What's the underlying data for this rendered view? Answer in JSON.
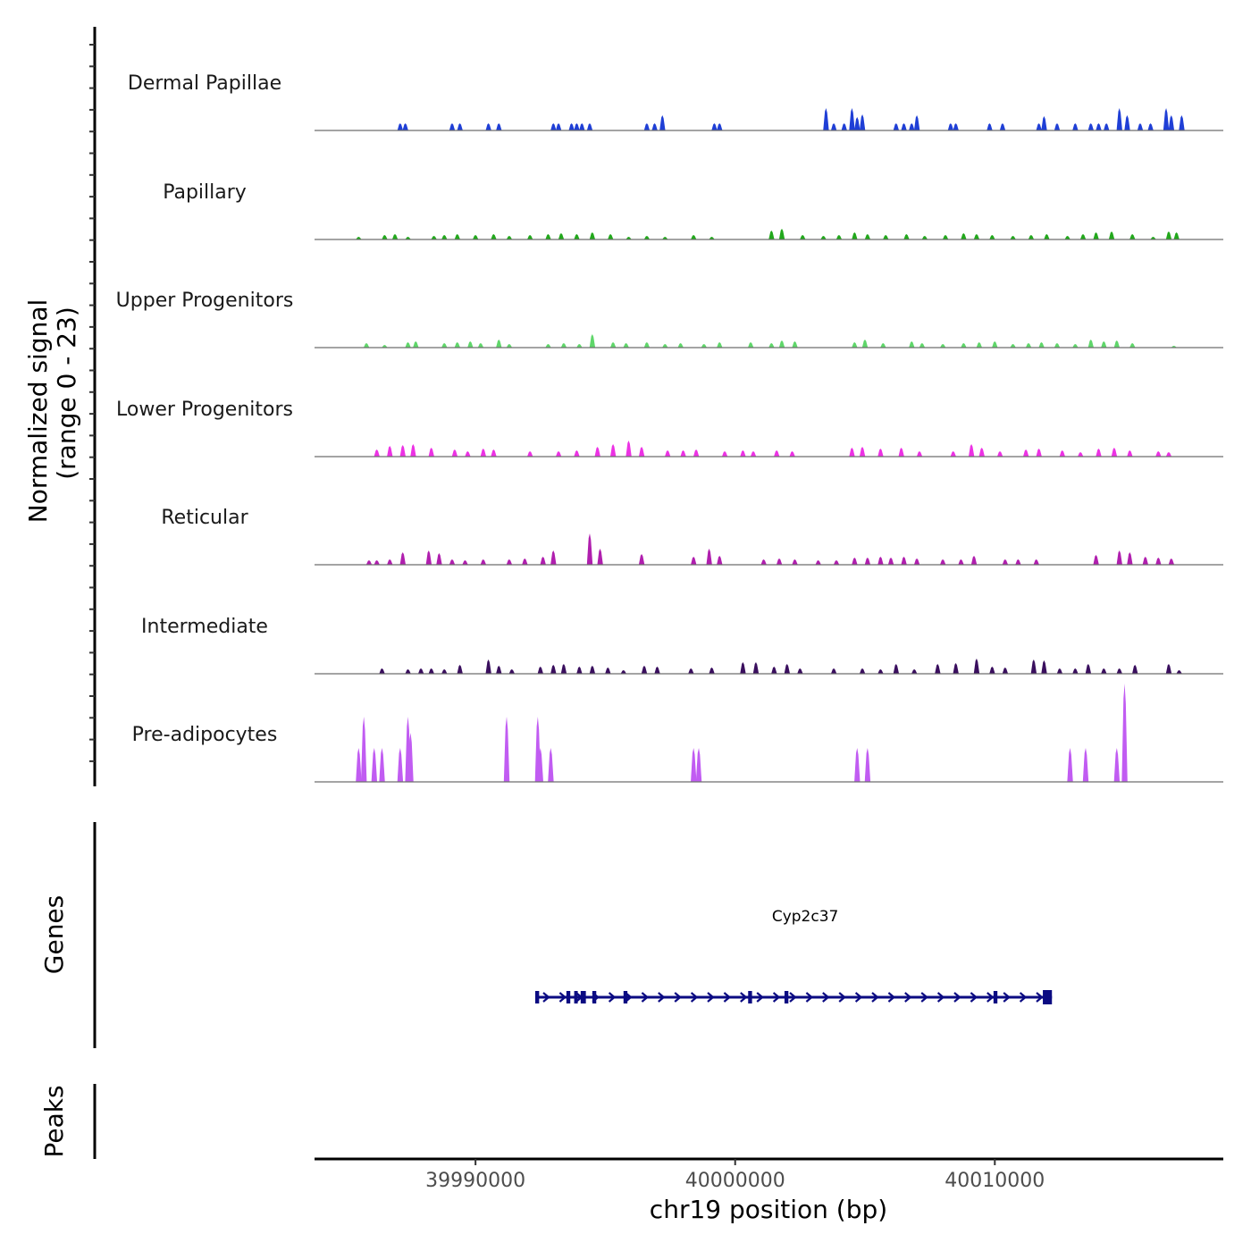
{
  "chart_data": {
    "type": "area",
    "chromosome": "chr19",
    "xlabel": "chr19 position (bp)",
    "ylabel_line1": "Normalized signal",
    "ylabel_line2": "(range 0 - 23)",
    "signal_range": [
      0,
      23
    ],
    "xlim": [
      39983800,
      40018800
    ],
    "x_ticks": [
      39990000,
      40000000,
      40010000
    ],
    "x_tick_labels": [
      "39990000",
      "40000000",
      "40010000"
    ],
    "genes_label": "Genes",
    "peaks_label": "Peaks",
    "tracks": [
      {
        "name": "Dermal Papillae",
        "color": "#1f3fd6",
        "peaks": [
          [
            39987100,
            8
          ],
          [
            39987300,
            8
          ],
          [
            39989100,
            8
          ],
          [
            39989400,
            8
          ],
          [
            39990500,
            8
          ],
          [
            39990900,
            8
          ],
          [
            39993000,
            8
          ],
          [
            39993200,
            8
          ],
          [
            39993700,
            8
          ],
          [
            39993900,
            8
          ],
          [
            39994100,
            8
          ],
          [
            39994400,
            8
          ],
          [
            39996600,
            8
          ],
          [
            39996900,
            8
          ],
          [
            39997200,
            17
          ],
          [
            39999200,
            8
          ],
          [
            39999400,
            8
          ],
          [
            40003500,
            25
          ],
          [
            40003800,
            8
          ],
          [
            40004200,
            8
          ],
          [
            40004500,
            25
          ],
          [
            40004700,
            15
          ],
          [
            40004900,
            18
          ],
          [
            40006200,
            8
          ],
          [
            40006500,
            8
          ],
          [
            40006800,
            8
          ],
          [
            40007000,
            17
          ],
          [
            40008300,
            8
          ],
          [
            40008500,
            8
          ],
          [
            40009800,
            8
          ],
          [
            40010300,
            8
          ],
          [
            40011700,
            8
          ],
          [
            40011900,
            16
          ],
          [
            40012400,
            8
          ],
          [
            40013100,
            8
          ],
          [
            40013700,
            8
          ],
          [
            40014000,
            8
          ],
          [
            40014300,
            8
          ],
          [
            40014800,
            25
          ],
          [
            40015100,
            17
          ],
          [
            40015600,
            8
          ],
          [
            40016000,
            8
          ],
          [
            40016600,
            25
          ],
          [
            40016800,
            17
          ],
          [
            40017200,
            17
          ]
        ]
      },
      {
        "name": "Papillary",
        "color": "#22a81c",
        "peaks": [
          [
            39985500,
            3
          ],
          [
            39986500,
            5
          ],
          [
            39986900,
            6
          ],
          [
            39987400,
            3
          ],
          [
            39988400,
            4
          ],
          [
            39988800,
            5
          ],
          [
            39989300,
            6
          ],
          [
            39990000,
            5
          ],
          [
            39990700,
            6
          ],
          [
            39991300,
            4
          ],
          [
            39992100,
            5
          ],
          [
            39992800,
            6
          ],
          [
            39993300,
            7
          ],
          [
            39993900,
            6
          ],
          [
            39994500,
            8
          ],
          [
            39995200,
            6
          ],
          [
            39995900,
            3
          ],
          [
            39996600,
            4
          ],
          [
            39997300,
            3
          ],
          [
            39998400,
            5
          ],
          [
            39999100,
            3
          ],
          [
            40001400,
            10
          ],
          [
            40001800,
            12
          ],
          [
            40002600,
            5
          ],
          [
            40003400,
            4
          ],
          [
            40004000,
            5
          ],
          [
            40004600,
            8
          ],
          [
            40005100,
            6
          ],
          [
            40005800,
            5
          ],
          [
            40006600,
            6
          ],
          [
            40007300,
            4
          ],
          [
            40008100,
            5
          ],
          [
            40008800,
            7
          ],
          [
            40009300,
            6
          ],
          [
            40009900,
            5
          ],
          [
            40010700,
            4
          ],
          [
            40011400,
            5
          ],
          [
            40012000,
            6
          ],
          [
            40012800,
            4
          ],
          [
            40013400,
            6
          ],
          [
            40013900,
            8
          ],
          [
            40014500,
            9
          ],
          [
            40015300,
            6
          ],
          [
            40016100,
            3
          ],
          [
            40016700,
            9
          ],
          [
            40017000,
            8
          ]
        ]
      },
      {
        "name": "Upper Progenitors",
        "color": "#5fd66a",
        "peaks": [
          [
            39985800,
            5
          ],
          [
            39986500,
            3
          ],
          [
            39987400,
            6
          ],
          [
            39987700,
            7
          ],
          [
            39988800,
            5
          ],
          [
            39989300,
            6
          ],
          [
            39989800,
            7
          ],
          [
            39990200,
            5
          ],
          [
            39990900,
            9
          ],
          [
            39991300,
            4
          ],
          [
            39992800,
            4
          ],
          [
            39993400,
            5
          ],
          [
            39994000,
            4
          ],
          [
            39994500,
            15
          ],
          [
            39995300,
            6
          ],
          [
            39995800,
            5
          ],
          [
            39996600,
            6
          ],
          [
            39997300,
            4
          ],
          [
            39997900,
            5
          ],
          [
            39998800,
            4
          ],
          [
            39999400,
            6
          ],
          [
            40000600,
            6
          ],
          [
            40001400,
            5
          ],
          [
            40001800,
            8
          ],
          [
            40002300,
            7
          ],
          [
            40004600,
            6
          ],
          [
            40005000,
            9
          ],
          [
            40005700,
            5
          ],
          [
            40006800,
            7
          ],
          [
            40007200,
            5
          ],
          [
            40008000,
            4
          ],
          [
            40008800,
            5
          ],
          [
            40009400,
            6
          ],
          [
            40010000,
            7
          ],
          [
            40010700,
            4
          ],
          [
            40011300,
            5
          ],
          [
            40011800,
            6
          ],
          [
            40012400,
            5
          ],
          [
            40013100,
            4
          ],
          [
            40013700,
            9
          ],
          [
            40014200,
            7
          ],
          [
            40014700,
            8
          ],
          [
            40015300,
            5
          ],
          [
            40016900,
            2
          ]
        ]
      },
      {
        "name": "Lower Progenitors",
        "color": "#ec32e4",
        "peaks": [
          [
            39986200,
            8
          ],
          [
            39986700,
            12
          ],
          [
            39987200,
            13
          ],
          [
            39987600,
            14
          ],
          [
            39988300,
            10
          ],
          [
            39989200,
            8
          ],
          [
            39989700,
            6
          ],
          [
            39990300,
            9
          ],
          [
            39990700,
            8
          ],
          [
            39992100,
            6
          ],
          [
            39993200,
            6
          ],
          [
            39993900,
            7
          ],
          [
            39994700,
            11
          ],
          [
            39995300,
            14
          ],
          [
            39995900,
            18
          ],
          [
            39996400,
            11
          ],
          [
            39997400,
            7
          ],
          [
            39998000,
            7
          ],
          [
            39998500,
            8
          ],
          [
            39999600,
            6
          ],
          [
            40000300,
            7
          ],
          [
            40000700,
            6
          ],
          [
            40001600,
            7
          ],
          [
            40002200,
            6
          ],
          [
            40004500,
            10
          ],
          [
            40004900,
            11
          ],
          [
            40005600,
            9
          ],
          [
            40006400,
            10
          ],
          [
            40007100,
            6
          ],
          [
            40008400,
            6
          ],
          [
            40009100,
            14
          ],
          [
            40009500,
            10
          ],
          [
            40010200,
            6
          ],
          [
            40011200,
            8
          ],
          [
            40011700,
            9
          ],
          [
            40012600,
            7
          ],
          [
            40013300,
            5
          ],
          [
            40014000,
            9
          ],
          [
            40014600,
            10
          ],
          [
            40015200,
            7
          ],
          [
            40016300,
            6
          ],
          [
            40016700,
            5
          ]
        ]
      },
      {
        "name": "Reticular",
        "color": "#b01fae",
        "peaks": [
          [
            39985900,
            5
          ],
          [
            39986200,
            5
          ],
          [
            39986700,
            6
          ],
          [
            39987200,
            14
          ],
          [
            39988200,
            16
          ],
          [
            39988600,
            13
          ],
          [
            39989100,
            6
          ],
          [
            39989600,
            5
          ],
          [
            39990300,
            6
          ],
          [
            39991300,
            6
          ],
          [
            39991900,
            7
          ],
          [
            39992600,
            9
          ],
          [
            39993000,
            16
          ],
          [
            39994400,
            35
          ],
          [
            39994800,
            18
          ],
          [
            39996400,
            12
          ],
          [
            39998400,
            9
          ],
          [
            39999000,
            18
          ],
          [
            39999400,
            10
          ],
          [
            40001100,
            6
          ],
          [
            40001700,
            7
          ],
          [
            40002300,
            6
          ],
          [
            40003200,
            5
          ],
          [
            40003900,
            5
          ],
          [
            40004600,
            8
          ],
          [
            40005100,
            8
          ],
          [
            40005600,
            9
          ],
          [
            40006000,
            8
          ],
          [
            40006500,
            9
          ],
          [
            40007000,
            7
          ],
          [
            40008000,
            6
          ],
          [
            40008700,
            6
          ],
          [
            40009200,
            10
          ],
          [
            40010400,
            6
          ],
          [
            40010900,
            6
          ],
          [
            40011600,
            6
          ],
          [
            40013900,
            11
          ],
          [
            40014800,
            16
          ],
          [
            40015200,
            14
          ],
          [
            40015800,
            9
          ],
          [
            40016300,
            8
          ],
          [
            40016800,
            7
          ]
        ]
      },
      {
        "name": "Intermediate",
        "color": "#3a0f5e",
        "peaks": [
          [
            39986400,
            6
          ],
          [
            39987400,
            5
          ],
          [
            39987900,
            6
          ],
          [
            39988300,
            6
          ],
          [
            39988800,
            5
          ],
          [
            39989400,
            10
          ],
          [
            39990500,
            16
          ],
          [
            39990900,
            9
          ],
          [
            39991400,
            5
          ],
          [
            39992500,
            8
          ],
          [
            39993000,
            10
          ],
          [
            39993400,
            11
          ],
          [
            39994000,
            8
          ],
          [
            39994500,
            9
          ],
          [
            39995100,
            7
          ],
          [
            39995700,
            4
          ],
          [
            39996500,
            9
          ],
          [
            39997000,
            8
          ],
          [
            39998300,
            6
          ],
          [
            39999100,
            7
          ],
          [
            40000300,
            13
          ],
          [
            40000800,
            13
          ],
          [
            40001500,
            8
          ],
          [
            40002000,
            11
          ],
          [
            40002500,
            6
          ],
          [
            40003800,
            6
          ],
          [
            40004900,
            6
          ],
          [
            40005600,
            5
          ],
          [
            40006200,
            11
          ],
          [
            40006900,
            5
          ],
          [
            40007800,
            11
          ],
          [
            40008500,
            12
          ],
          [
            40009300,
            17
          ],
          [
            40009900,
            8
          ],
          [
            40010400,
            7
          ],
          [
            40011500,
            16
          ],
          [
            40011900,
            15
          ],
          [
            40012500,
            6
          ],
          [
            40013100,
            6
          ],
          [
            40013600,
            11
          ],
          [
            40014200,
            6
          ],
          [
            40014800,
            6
          ],
          [
            40015400,
            10
          ],
          [
            40016700,
            11
          ],
          [
            40017100,
            4
          ]
        ]
      },
      {
        "name": "Pre-adipocytes",
        "color": "#c15cf2",
        "peaks": [
          [
            39985500,
            38
          ],
          [
            39985700,
            73
          ],
          [
            39986100,
            38
          ],
          [
            39986400,
            38
          ],
          [
            39987100,
            38
          ],
          [
            39987400,
            73
          ],
          [
            39987500,
            55
          ],
          [
            39991200,
            73
          ],
          [
            39992400,
            73
          ],
          [
            39992500,
            38
          ],
          [
            39992900,
            38
          ],
          [
            39998400,
            38
          ],
          [
            39998600,
            38
          ],
          [
            40004700,
            38
          ],
          [
            40005100,
            38
          ],
          [
            40012900,
            38
          ],
          [
            40013500,
            38
          ],
          [
            40014700,
            38
          ],
          [
            40015000,
            110
          ]
        ]
      }
    ],
    "gene": {
      "name": "Cyp2c37",
      "strand": "+",
      "start": 39992300,
      "end": 40012200,
      "exons": [
        [
          39992300,
          39992450
        ],
        [
          39993500,
          39993650
        ],
        [
          39993800,
          39993900
        ],
        [
          39994050,
          39994250
        ],
        [
          39994500,
          39994650
        ],
        [
          39995700,
          39995850
        ],
        [
          40000500,
          40000650
        ],
        [
          40001900,
          40002050
        ],
        [
          40009950,
          40010100
        ],
        [
          40011850,
          40012200
        ]
      ]
    },
    "peaks_track": []
  }
}
